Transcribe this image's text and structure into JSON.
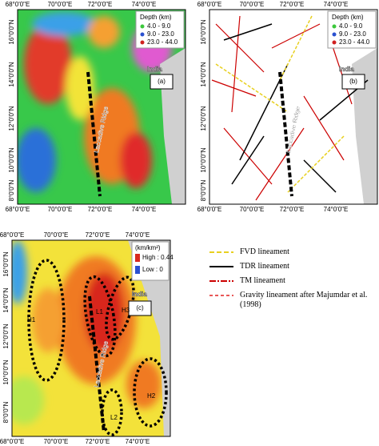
{
  "lon_ticks": [
    "68°0'0\"E",
    "70°0'0\"E",
    "72°0'0\"E",
    "74°0'0\"E"
  ],
  "lat_ticks": [
    "16°0'0\"N",
    "14°0'0\"N",
    "12°0'0\"N",
    "10°0'0\"N",
    "8°0'0\"N"
  ],
  "panel_a": {
    "label": "(a)",
    "legend_title": "Depth (km)",
    "legend_items": [
      "4.0 - 9.0",
      "9.0 - 23.0",
      "23.0 - 44.0"
    ],
    "country": "India",
    "ridge": "Laccadive Ridge"
  },
  "panel_b": {
    "label": "(b)",
    "legend_title": "Depth (km)",
    "legend_items": [
      "4.0 - 9.0",
      "9.0 - 23.0",
      "23.0 - 44.0"
    ],
    "country": "India",
    "ridge": "Laccadive Ridge"
  },
  "panel_c": {
    "label": "(c)",
    "unit": "(km/km²)",
    "high": "High : 0.44",
    "low": "Low : 0",
    "country": "India",
    "ridge": "Laccadive Ridge",
    "zones": [
      "H1",
      "L1",
      "H3",
      "H2",
      "L2"
    ]
  },
  "lineament_legend": [
    "FVD lineament",
    "TDR lineament",
    "TM lineament",
    "Gravity lineament after Majumdar et al. (1998)"
  ]
}
